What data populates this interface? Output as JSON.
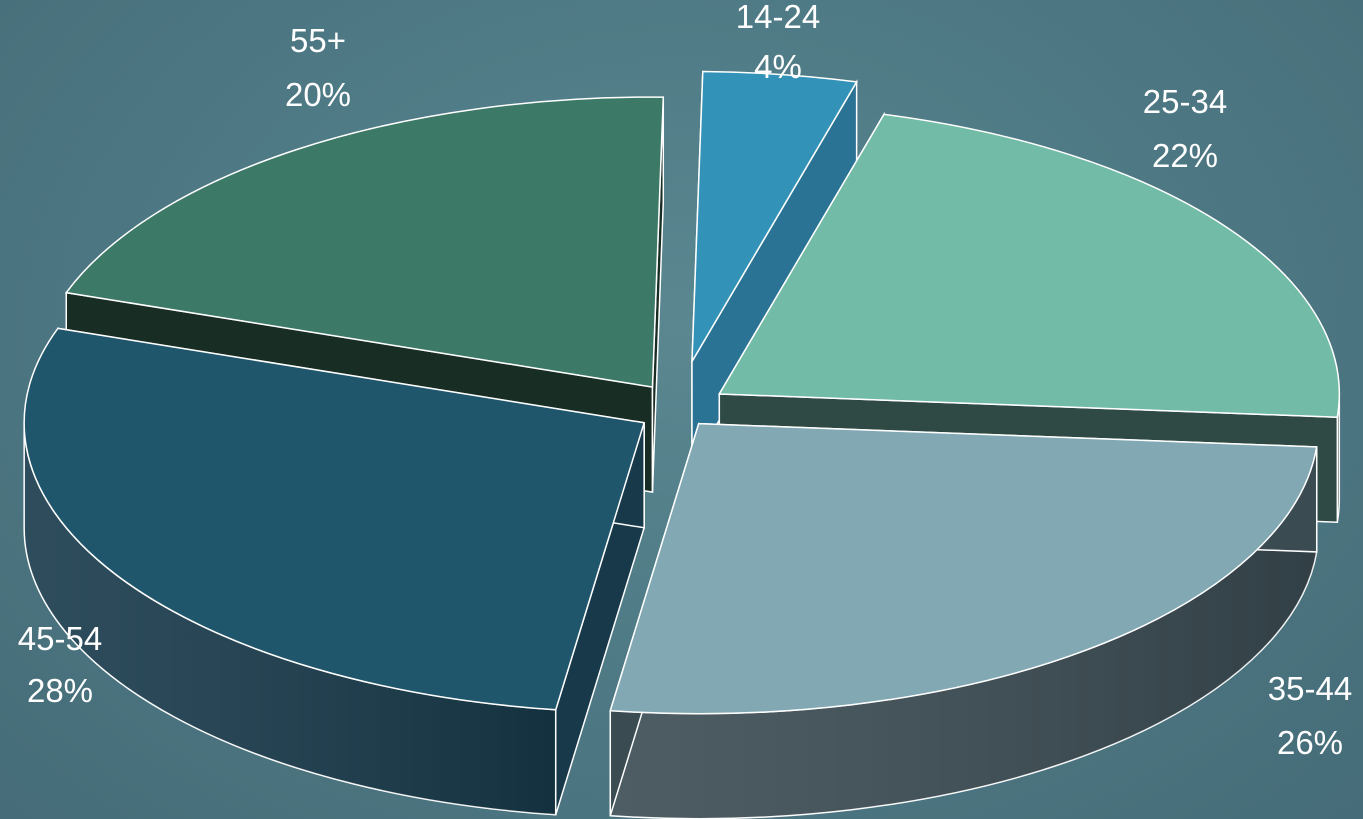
{
  "chart_data": {
    "type": "pie",
    "style": "3d-exploded",
    "title": "",
    "legend": "none",
    "slices": [
      {
        "label": "14-24",
        "value": 4,
        "value_label": "4%",
        "top_color": "#3392b8",
        "side_color": "#2a7394"
      },
      {
        "label": "25-34",
        "value": 22,
        "value_label": "22%",
        "top_color": "#72bba7",
        "side_color": "#2f4a44"
      },
      {
        "label": "35-44",
        "value": 26,
        "value_label": "26%",
        "top_color": "#82a9b3",
        "side_color": "#3a4b52"
      },
      {
        "label": "45-54",
        "value": 28,
        "value_label": "28%",
        "top_color": "#20566c",
        "side_color": "#17394a"
      },
      {
        "label": "55+",
        "value": 20,
        "value_label": "20%",
        "top_color": "#3c7a67",
        "side_color": "#182e25"
      }
    ]
  }
}
